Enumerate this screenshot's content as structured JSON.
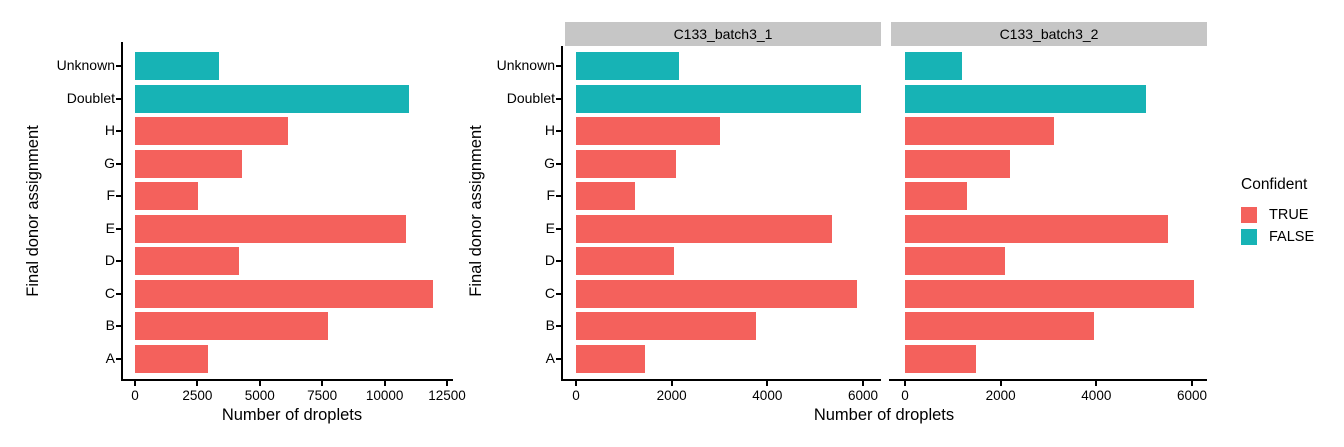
{
  "chart_data": {
    "type": "bar",
    "orientation": "horizontal",
    "title": "",
    "xlabel": "Number of droplets",
    "ylabel": "Final donor assignment",
    "grid": false,
    "strip_background": "#C6C6C6",
    "categories_top_to_bottom": [
      "Unknown",
      "Doublet",
      "H",
      "G",
      "F",
      "E",
      "D",
      "C",
      "B",
      "A"
    ],
    "confident_by_category": [
      "FALSE",
      "FALSE",
      "TRUE",
      "TRUE",
      "TRUE",
      "TRUE",
      "TRUE",
      "TRUE",
      "TRUE",
      "TRUE"
    ],
    "legend": {
      "title": "Confident",
      "position": "right",
      "entries": [
        {
          "label": "TRUE",
          "color": "#F4615C"
        },
        {
          "label": "FALSE",
          "color": "#17B3B5"
        }
      ]
    },
    "panels": [
      {
        "facet_label": "",
        "values": [
          3350,
          10980,
          6120,
          4300,
          2530,
          10840,
          4150,
          11920,
          7720,
          2920
        ],
        "xlim": [
          0,
          12500
        ],
        "xticks": [
          0,
          2500,
          5000,
          7500,
          10000,
          12500
        ],
        "show_y_tick_labels": true,
        "show_y_axis_title": true
      },
      {
        "facet_label": "C133_batch3_1",
        "values": [
          2150,
          5950,
          3000,
          2100,
          1230,
          5350,
          2050,
          5870,
          3770,
          1440
        ],
        "xlim": [
          0,
          6000
        ],
        "xticks": [
          0,
          2000,
          4000,
          6000
        ],
        "show_y_tick_labels": true,
        "show_y_axis_title": true
      },
      {
        "facet_label": "C133_batch3_2",
        "values": [
          1200,
          5030,
          3120,
          2200,
          1300,
          5490,
          2100,
          6050,
          3950,
          1480
        ],
        "xlim": [
          0,
          6000
        ],
        "xticks": [
          0,
          2000,
          4000,
          6000
        ],
        "show_y_tick_labels": false,
        "show_y_axis_title": false
      }
    ]
  }
}
